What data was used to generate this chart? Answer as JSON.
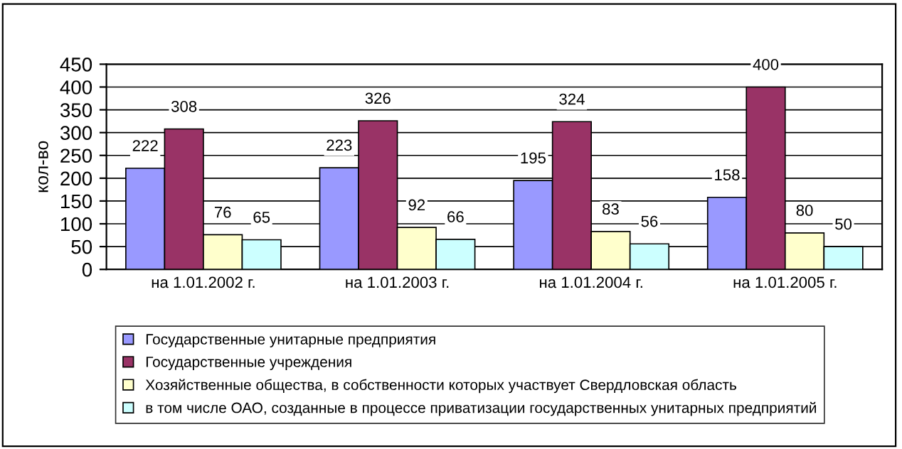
{
  "chart_data": {
    "type": "bar",
    "ylabel": "кол-во",
    "categories": [
      "на 1.01.2002 г.",
      "на 1.01.2003 г.",
      "на 1.01.2004 г.",
      "на 1.01.2005 г."
    ],
    "series": [
      {
        "name": "Государственные унитарные предприятия",
        "color": "#9999ff",
        "values": [
          222,
          223,
          195,
          158
        ]
      },
      {
        "name": "Государственные учреждения",
        "color": "#993366",
        "values": [
          308,
          326,
          324,
          400
        ]
      },
      {
        "name": "Хозяйственные общества, в собственности которых участвует Свердловская область",
        "color": "#ffffcc",
        "values": [
          76,
          92,
          83,
          80
        ]
      },
      {
        "name": "в том числе ОАО, созданные в процессе приватизации государственных унитарных предприятий",
        "color": "#ccffff",
        "values": [
          65,
          66,
          56,
          50
        ]
      }
    ],
    "ylim": [
      0,
      450
    ],
    "yticks": [
      0,
      50,
      100,
      150,
      200,
      250,
      300,
      350,
      400,
      450
    ],
    "grid": "y",
    "legend": "bottom",
    "data_labels": true
  }
}
